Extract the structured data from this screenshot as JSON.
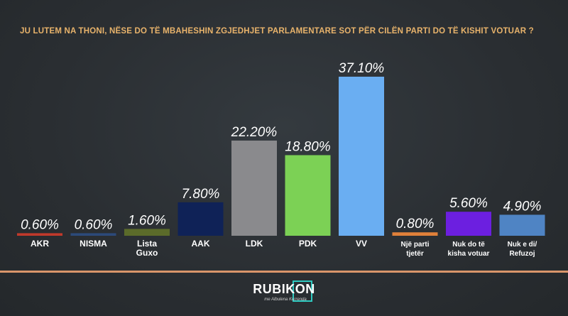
{
  "question": "JU LUTEM NA THONI, NËSE DO TË MBAHESHIN ZGJEDHJET PARLAMENTARE SOT PËR CILËN PARTI DO TË KISHIT VOTUAR ?",
  "brand": {
    "name": "RUBIKON",
    "tagline": "me Albulena Kurrenda"
  },
  "colors": {
    "accent": "#d9956a",
    "title": "#e8b36b",
    "background": "#2b2f33"
  },
  "chart_data": {
    "type": "bar",
    "title": "JU LUTEM NA THONI, NËSE DO TË MBAHESHIN ZGJEDHJET PARLAMENTARE SOT PËR CILËN PARTI DO TË KISHIT VOTUAR ?",
    "categories": [
      "AKR",
      "NISMA",
      "Lista Guxo",
      "AAK",
      "LDK",
      "PDK",
      "VV",
      "Një parti tjetër",
      "Nuk do të kisha votuar",
      "Nuk e di/ Refuzoj"
    ],
    "category_lines": [
      [
        "AKR"
      ],
      [
        "NISMA"
      ],
      [
        "Lista",
        "Guxo"
      ],
      [
        "AAK"
      ],
      [
        "LDK"
      ],
      [
        "PDK"
      ],
      [
        "VV"
      ],
      [
        "Një parti",
        "tjetër"
      ],
      [
        "Nuk do të",
        "kisha votuar"
      ],
      [
        "Nuk e di/",
        "Refuzoj"
      ]
    ],
    "values": [
      0.6,
      0.6,
      1.6,
      7.8,
      22.2,
      18.8,
      37.1,
      0.8,
      5.6,
      4.9
    ],
    "value_labels": [
      "0.60%",
      "0.60%",
      "1.60%",
      "7.80%",
      "22.20%",
      "18.80%",
      "37.10%",
      "0.80%",
      "5.60%",
      "4.90%"
    ],
    "bar_colors": [
      "#c0392b",
      "#2c4a7a",
      "#5b6b2a",
      "#0f2257",
      "#8a8a8d",
      "#7cd155",
      "#6aaef2",
      "#e0803a",
      "#6c1fe0",
      "#4f84c4"
    ],
    "ylim": [
      0,
      37.1
    ],
    "grid": false,
    "legend": "none"
  }
}
